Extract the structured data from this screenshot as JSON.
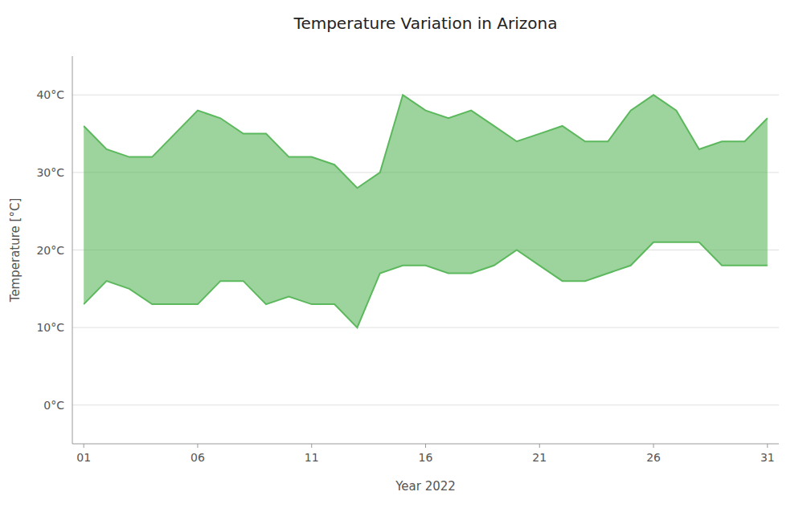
{
  "chart_data": {
    "type": "range_area",
    "title": "Temperature Variation in Arizona",
    "xlabel": "Year 2022",
    "ylabel": "Temperature [°C]",
    "x": [
      1,
      2,
      3,
      4,
      5,
      6,
      7,
      8,
      9,
      10,
      11,
      12,
      13,
      14,
      15,
      16,
      17,
      18,
      19,
      20,
      21,
      22,
      23,
      24,
      25,
      26,
      27,
      28,
      29,
      30,
      31
    ],
    "high": [
      36,
      33,
      32,
      32,
      35,
      38,
      37,
      35,
      35,
      32,
      32,
      31,
      28,
      30,
      40,
      38,
      37,
      38,
      36,
      34,
      35,
      36,
      34,
      34,
      38,
      40,
      38,
      33,
      34,
      34,
      37
    ],
    "low": [
      13,
      16,
      15,
      13,
      13,
      13,
      16,
      16,
      13,
      14,
      13,
      13,
      10,
      17,
      18,
      18,
      17,
      17,
      18,
      20,
      18,
      16,
      16,
      17,
      18,
      21,
      21,
      21,
      18,
      18,
      18
    ],
    "color": "#5CB85C",
    "xlim": [
      0.5,
      31.5
    ],
    "ylim": [
      -5,
      45
    ],
    "xticks": [
      {
        "value": 1,
        "label": "01"
      },
      {
        "value": 6,
        "label": "06"
      },
      {
        "value": 11,
        "label": "11"
      },
      {
        "value": 16,
        "label": "16"
      },
      {
        "value": 21,
        "label": "21"
      },
      {
        "value": 26,
        "label": "26"
      },
      {
        "value": 31,
        "label": "31"
      }
    ],
    "yticks": [
      {
        "value": 0,
        "label": "0°C"
      },
      {
        "value": 10,
        "label": "10°C"
      },
      {
        "value": 20,
        "label": "20°C"
      },
      {
        "value": 30,
        "label": "30°C"
      },
      {
        "value": 40,
        "label": "40°C"
      }
    ],
    "grid": true
  }
}
